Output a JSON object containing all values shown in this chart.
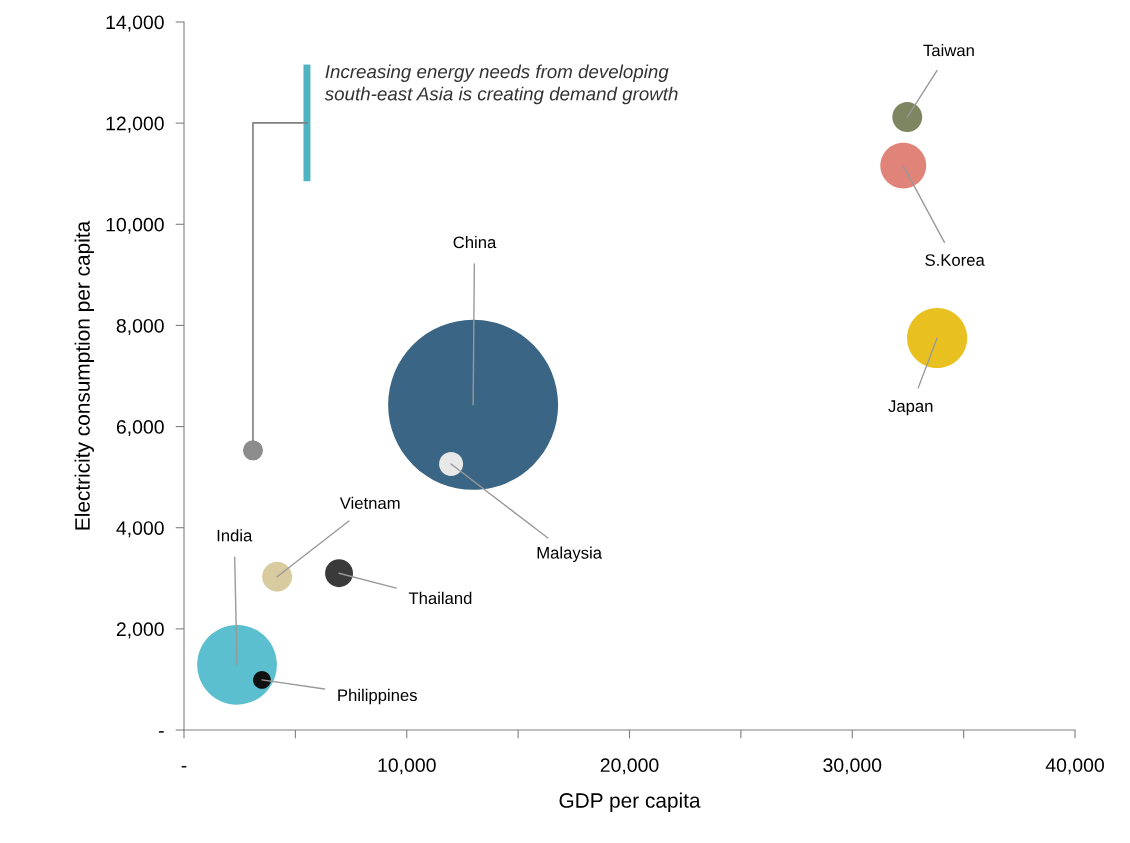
{
  "chart_data": {
    "type": "bubble",
    "xlabel": "GDP per capita",
    "ylabel": "Electricity consumption per capita",
    "series": [
      {
        "name": "China",
        "color": "#3b6584",
        "x": [
          12980
        ],
        "values": [
          6430
        ],
        "sizes": [
          1
        ]
      },
      {
        "name": "India",
        "color": "#5bbfd0",
        "x": [
          2380
        ],
        "values": [
          1290
        ],
        "sizes": [
          0.22
        ]
      },
      {
        "name": "Philippines",
        "color": "#111111",
        "x": [
          3500
        ],
        "values": [
          990
        ],
        "sizes": [
          0.011
        ]
      },
      {
        "name": "Vietnam",
        "color": "#d8cba0",
        "x": [
          4180
        ],
        "values": [
          3030
        ],
        "sizes": [
          0.031
        ]
      },
      {
        "name": "Thailand",
        "color": "#3a3a3a",
        "x": [
          6960
        ],
        "values": [
          3100
        ],
        "sizes": [
          0.027
        ]
      },
      {
        "name": "Malaysia",
        "color": "#e8e8e8",
        "x": [
          11990
        ],
        "values": [
          5260
        ],
        "sizes": [
          0.02
        ]
      },
      {
        "name": "Taiwan",
        "color": "#7d8660",
        "x": [
          32470
        ],
        "values": [
          12120
        ],
        "sizes": [
          0.031
        ]
      },
      {
        "name": "S.Korea",
        "color": "#e0847a",
        "x": [
          32290
        ],
        "values": [
          11160
        ],
        "sizes": [
          0.073
        ]
      },
      {
        "name": "Japan",
        "color": "#e8c020",
        "x": [
          33810
        ],
        "values": [
          7750
        ],
        "sizes": [
          0.125
        ]
      }
    ],
    "xlim": [
      0,
      40000
    ],
    "ylim": [
      0,
      14000
    ],
    "xticks": [
      {
        "value": 0,
        "label": "-"
      },
      {
        "value": 5000,
        "label": null
      },
      {
        "value": 10000,
        "label": "10,000"
      },
      {
        "value": 15000,
        "label": null
      },
      {
        "value": 20000,
        "label": "20,000"
      },
      {
        "value": 25000,
        "label": null
      },
      {
        "value": 30000,
        "label": "30,000"
      },
      {
        "value": 35000,
        "label": null
      },
      {
        "value": 40000,
        "label": "40,000"
      }
    ],
    "yticks": [
      {
        "value": 0,
        "label": "-"
      },
      {
        "value": 2000,
        "label": "2,000"
      },
      {
        "value": 4000,
        "label": "4,000"
      },
      {
        "value": 6000,
        "label": "6,000"
      },
      {
        "value": 8000,
        "label": "8,000"
      },
      {
        "value": 10000,
        "label": "10,000"
      },
      {
        "value": 12000,
        "label": "12,000"
      },
      {
        "value": 14000,
        "label": "14,000"
      }
    ],
    "grid": false,
    "legend": false,
    "annotations": [
      "Increasing energy needs from developing south-east Asia is creating demand growth"
    ]
  }
}
